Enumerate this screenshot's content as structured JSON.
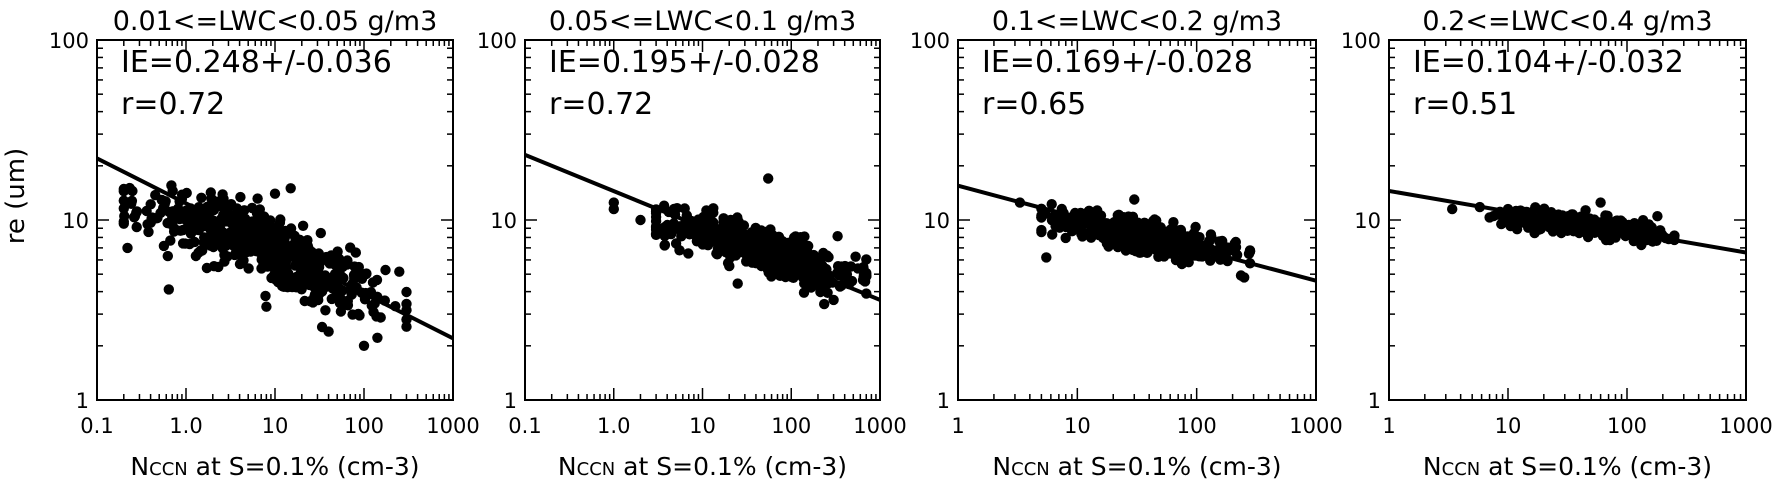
{
  "figure": {
    "ylabel": "re (um)"
  },
  "chart_data": [
    {
      "type": "scatter",
      "title": "0.01<=LWC<0.05 g/m3",
      "xlabel_main": "N",
      "xlabel_sub": "CCN",
      "xlabel_rest": " at S=0.1% (cm-3)",
      "ylabel": "re (um)",
      "xscale": "log",
      "yscale": "log",
      "xlim": [
        0.1,
        1000
      ],
      "ylim": [
        1,
        100
      ],
      "xticks": [
        0.1,
        1,
        10,
        100,
        1000
      ],
      "xtick_labels": [
        "0.1",
        "1.0",
        "10",
        "100",
        "1000"
      ],
      "yticks": [
        1,
        10,
        100
      ],
      "ytick_labels": [
        "1",
        "10",
        "100"
      ],
      "annotations": [
        "IE=0.248+/-0.036",
        "r=0.72"
      ],
      "fit_line": {
        "x": [
          0.1,
          1000
        ],
        "y": [
          22,
          2.2
        ]
      },
      "cluster": {
        "xrange": [
          0.2,
          300
        ],
        "ycenter_at": [
          [
            0.3,
            11.5
          ],
          [
            3,
            9
          ],
          [
            30,
            5
          ],
          [
            200,
            3.3
          ]
        ],
        "n": 520,
        "spread": 0.35
      },
      "outliers": [
        [
          0.22,
          7.0
        ],
        [
          0.25,
          14.5
        ],
        [
          10,
          14
        ],
        [
          15,
          15
        ],
        [
          8,
          3.3
        ],
        [
          100,
          2.0
        ],
        [
          40,
          2.4
        ]
      ]
    },
    {
      "type": "scatter",
      "title": "0.05<=LWC<0.1 g/m3",
      "xlabel_main": "N",
      "xlabel_sub": "CCN",
      "xlabel_rest": " at S=0.1% (cm-3)",
      "ylabel": "",
      "xscale": "log",
      "yscale": "log",
      "xlim": [
        0.1,
        1000
      ],
      "ylim": [
        1,
        100
      ],
      "xticks": [
        0.1,
        1,
        10,
        100,
        1000
      ],
      "xtick_labels": [
        "0.1",
        "1.0",
        "10",
        "100",
        "1000"
      ],
      "yticks": [
        1,
        10,
        100
      ],
      "ytick_labels": [
        "1",
        "10",
        "100"
      ],
      "annotations": [
        "IE=0.195+/-0.028",
        "r=0.72"
      ],
      "fit_line": {
        "x": [
          0.1,
          1000
        ],
        "y": [
          23,
          3.6
        ]
      },
      "cluster": {
        "xrange": [
          3,
          700
        ],
        "ycenter_at": [
          [
            4,
            9.5
          ],
          [
            30,
            7.5
          ],
          [
            300,
            5
          ]
        ],
        "n": 520,
        "spread": 0.22
      },
      "outliers": [
        [
          1.0,
          11.5
        ],
        [
          1.0,
          12.5
        ],
        [
          2,
          10
        ],
        [
          55,
          17
        ],
        [
          700,
          3.9
        ],
        [
          300,
          3.6
        ]
      ]
    },
    {
      "type": "scatter",
      "title": "0.1<=LWC<0.2 g/m3",
      "xlabel_main": "N",
      "xlabel_sub": "CCN",
      "xlabel_rest": " at S=0.1% (cm-3)",
      "ylabel": "",
      "xscale": "log",
      "yscale": "log",
      "xlim": [
        1,
        1000
      ],
      "ylim": [
        1,
        100
      ],
      "xticks": [
        1,
        10,
        100,
        1000
      ],
      "xtick_labels": [
        "1",
        "10",
        "100",
        "1000"
      ],
      "yticks": [
        1,
        10,
        100
      ],
      "ytick_labels": [
        "1",
        "10",
        "100"
      ],
      "annotations": [
        "IE=0.169+/-0.028",
        "r=0.65"
      ],
      "fit_line": {
        "x": [
          1,
          1000
        ],
        "y": [
          15.5,
          4.6
        ]
      },
      "cluster": {
        "xrange": [
          5,
          280
        ],
        "ycenter_at": [
          [
            6,
            10.5
          ],
          [
            30,
            8.3
          ],
          [
            200,
            6.5
          ]
        ],
        "n": 480,
        "spread": 0.15
      },
      "outliers": [
        [
          3.3,
          12.5
        ],
        [
          5.5,
          6.2
        ],
        [
          30,
          13
        ],
        [
          250,
          4.8
        ]
      ]
    },
    {
      "type": "scatter",
      "title": "0.2<=LWC<0.4 g/m3",
      "xlabel_main": "N",
      "xlabel_sub": "CCN",
      "xlabel_rest": " at S=0.1% (cm-3)",
      "ylabel": "",
      "xscale": "log",
      "yscale": "log",
      "xlim": [
        1,
        1000
      ],
      "ylim": [
        1,
        100
      ],
      "xticks": [
        1,
        10,
        100,
        1000
      ],
      "xtick_labels": [
        "1",
        "10",
        "100",
        "1000"
      ],
      "yticks": [
        1,
        10,
        100
      ],
      "ytick_labels": [
        "1",
        "10",
        "100"
      ],
      "annotations": [
        "IE=0.104+/-0.032",
        "r=0.51"
      ],
      "fit_line": {
        "x": [
          1,
          1000
        ],
        "y": [
          14.5,
          6.6
        ]
      },
      "cluster": {
        "xrange": [
          7,
          250
        ],
        "ycenter_at": [
          [
            8,
            10.5
          ],
          [
            40,
            9.5
          ],
          [
            200,
            8.2
          ]
        ],
        "n": 300,
        "spread": 0.1
      },
      "outliers": [
        [
          3.4,
          11.5
        ],
        [
          5.8,
          11.8
        ],
        [
          10,
          11.5
        ],
        [
          60,
          12.5
        ],
        [
          180,
          10.5
        ]
      ]
    }
  ]
}
